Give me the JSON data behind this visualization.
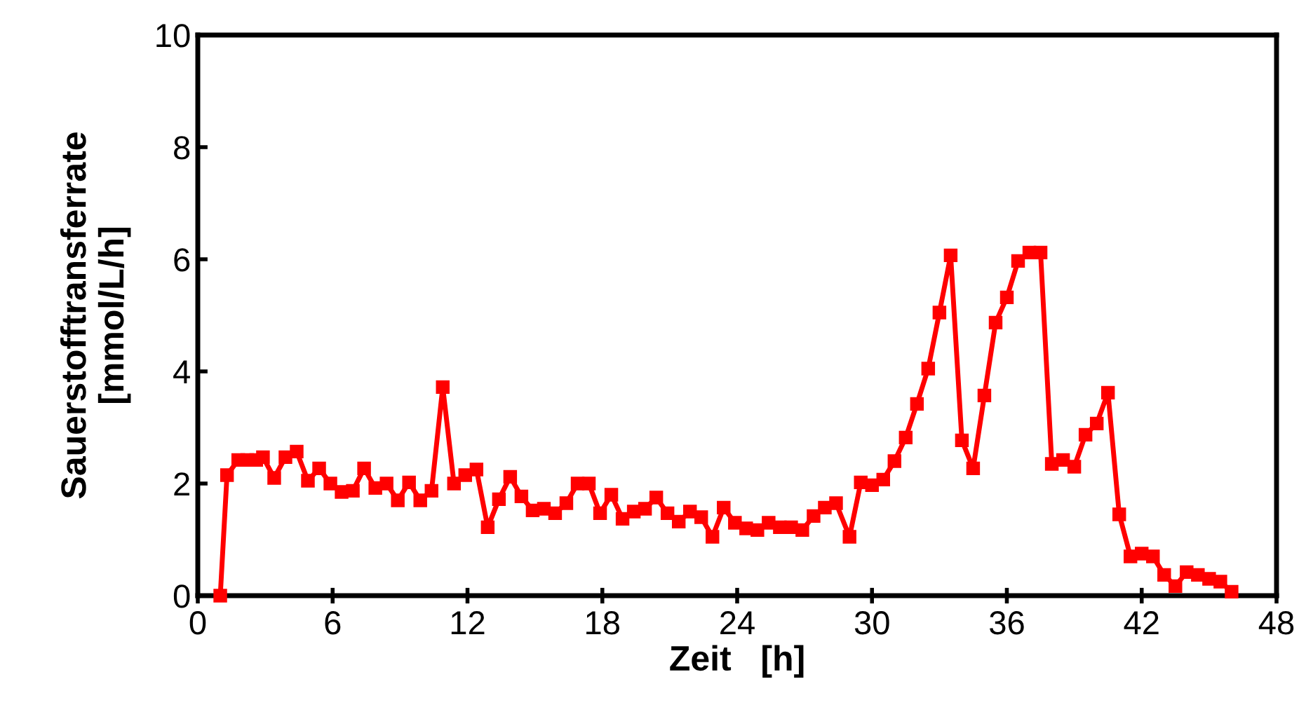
{
  "chart_data": {
    "type": "line",
    "xlabel": "Zeit   [h]",
    "ylabel": "Sauerstofftransferrate\n[mmol/L/h]",
    "xlim": [
      0,
      48
    ],
    "xticks": [
      0,
      6,
      12,
      18,
      24,
      30,
      36,
      42,
      48
    ],
    "ylim": [
      0,
      10
    ],
    "yticks": [
      0,
      2,
      4,
      6,
      8,
      10
    ],
    "grid": false,
    "legend": false,
    "marker": "square",
    "line_style": "solid",
    "series": [
      {
        "color": "#ff0000",
        "x": [
          1.0,
          1.3,
          1.8,
          2.2,
          2.6,
          2.9,
          3.4,
          3.9,
          4.4,
          4.9,
          5.4,
          5.9,
          6.4,
          6.9,
          7.4,
          7.9,
          8.4,
          8.9,
          9.4,
          9.9,
          10.4,
          10.9,
          11.4,
          11.9,
          12.4,
          12.9,
          13.4,
          13.9,
          14.4,
          14.9,
          15.4,
          15.9,
          16.4,
          16.9,
          17.4,
          17.9,
          18.4,
          18.9,
          19.4,
          19.9,
          20.4,
          20.9,
          21.4,
          21.9,
          22.4,
          22.9,
          23.4,
          23.9,
          24.4,
          24.9,
          25.4,
          25.9,
          26.4,
          26.9,
          27.4,
          27.9,
          28.4,
          29.0,
          29.5,
          30.0,
          30.5,
          31.0,
          31.5,
          32.0,
          32.5,
          33.0,
          33.5,
          34.0,
          34.5,
          35.0,
          35.5,
          36.0,
          36.5,
          37.0,
          37.5,
          38.0,
          38.5,
          39.0,
          39.5,
          40.0,
          40.5,
          41.0,
          41.5,
          42.0,
          42.5,
          43.0,
          43.5,
          44.0,
          44.5,
          45.0,
          45.5,
          46.0
        ],
        "values": [
          0,
          2.15,
          2.42,
          2.42,
          2.42,
          2.47,
          2.1,
          2.47,
          2.57,
          2.05,
          2.27,
          2.0,
          1.85,
          1.87,
          2.27,
          1.92,
          2.0,
          1.7,
          2.02,
          1.7,
          1.87,
          3.72,
          2.0,
          2.15,
          2.25,
          1.22,
          1.72,
          2.12,
          1.77,
          1.52,
          1.55,
          1.47,
          1.65,
          2.0,
          2.0,
          1.47,
          1.8,
          1.37,
          1.5,
          1.55,
          1.75,
          1.47,
          1.32,
          1.5,
          1.4,
          1.05,
          1.57,
          1.3,
          1.2,
          1.17,
          1.3,
          1.22,
          1.22,
          1.17,
          1.42,
          1.57,
          1.65,
          1.05,
          2.02,
          1.97,
          2.07,
          2.4,
          2.82,
          3.42,
          4.05,
          5.05,
          6.07,
          2.77,
          2.27,
          3.57,
          4.87,
          5.32,
          5.97,
          6.12,
          6.12,
          2.35,
          2.42,
          2.3,
          2.87,
          3.07,
          3.62,
          1.45,
          0.7,
          0.75,
          0.7,
          0.37,
          0.17,
          0.42,
          0.37,
          0.3,
          0.25,
          0.07
        ]
      }
    ]
  }
}
